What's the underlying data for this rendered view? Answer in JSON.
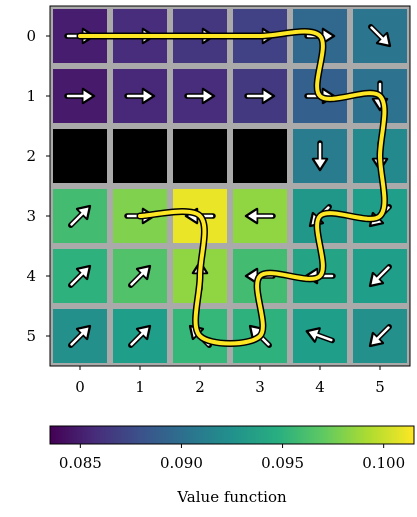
{
  "chart_data": {
    "type": "heatmap",
    "title": "",
    "xlabel": "",
    "ylabel": "",
    "x_ticks": [
      "0",
      "1",
      "2",
      "3",
      "4",
      "5"
    ],
    "y_ticks": [
      "0",
      "1",
      "2",
      "3",
      "4",
      "5"
    ],
    "values": [
      [
        0.085,
        0.0858,
        0.0863,
        0.087,
        0.0895,
        0.0905
      ],
      [
        0.0848,
        0.0855,
        0.0858,
        0.0865,
        0.089,
        0.0903
      ],
      [
        null,
        null,
        null,
        null,
        0.091,
        0.092
      ],
      [
        0.096,
        0.098,
        0.101,
        0.0985,
        0.093,
        0.0935
      ],
      [
        0.095,
        0.0965,
        0.0985,
        0.096,
        0.094,
        0.0935
      ],
      [
        0.0925,
        0.0935,
        0.0955,
        0.095,
        0.0935,
        0.0925
      ]
    ],
    "obstacle_color": "#000000",
    "arrows": [
      [
        "E",
        "E",
        "E",
        "E",
        "E",
        "SE"
      ],
      [
        "E",
        "E",
        "E",
        "E",
        "E",
        "S"
      ],
      [
        null,
        null,
        null,
        null,
        "S",
        "S"
      ],
      [
        "NE",
        "E",
        "W",
        "W",
        "SW",
        "SW"
      ],
      [
        "NE",
        "NE",
        "N",
        "W",
        "W",
        "SW"
      ],
      [
        "NE",
        "NE",
        "NW",
        "NW",
        "WNW",
        "SW"
      ]
    ],
    "trajectory": [
      [
        0,
        0
      ],
      [
        0,
        1
      ],
      [
        0,
        2
      ],
      [
        0,
        3
      ],
      [
        0,
        4
      ],
      [
        1,
        4
      ],
      [
        1,
        5
      ],
      [
        2,
        5
      ],
      [
        3,
        5
      ],
      [
        3,
        4
      ],
      [
        4,
        4
      ],
      [
        4,
        3
      ],
      [
        5,
        3
      ],
      [
        5,
        2
      ],
      [
        4,
        2
      ],
      [
        3,
        2
      ],
      [
        3,
        1
      ]
    ],
    "colorbar": {
      "label": "Value function",
      "ticks": [
        "0.085",
        "0.090",
        "0.095",
        "0.100"
      ],
      "tick_values": [
        0.085,
        0.09,
        0.095,
        0.1
      ],
      "range": [
        0.0835,
        0.1015
      ],
      "colormap": "viridis"
    }
  }
}
